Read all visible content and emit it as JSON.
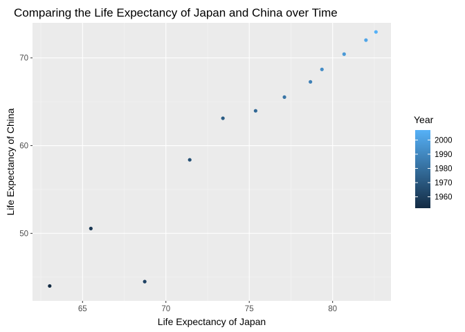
{
  "chart_data": {
    "type": "scatter",
    "title": "Comparing the Life Expectancy of Japan and China over Time",
    "xlabel": "Life Expectancy of Japan",
    "ylabel": "Life Expectancy of China",
    "xlim": [
      62.0,
      83.5
    ],
    "ylim": [
      42.3,
      74.0
    ],
    "x_ticks": [
      65,
      70,
      75,
      80
    ],
    "y_ticks": [
      50,
      60,
      70
    ],
    "grid": true,
    "legend": {
      "title": "Year",
      "position": "right",
      "ticks": [
        1960,
        1970,
        1980,
        1990,
        2000
      ],
      "range": [
        1952,
        2007
      ],
      "color_low": "#132B43",
      "color_high": "#56B1F7"
    },
    "points": [
      {
        "year": 1952,
        "x": 63.03,
        "y": 44.0
      },
      {
        "year": 1957,
        "x": 65.5,
        "y": 50.55
      },
      {
        "year": 1962,
        "x": 68.73,
        "y": 44.5
      },
      {
        "year": 1967,
        "x": 71.43,
        "y": 58.38
      },
      {
        "year": 1972,
        "x": 73.42,
        "y": 63.12
      },
      {
        "year": 1977,
        "x": 75.38,
        "y": 63.97
      },
      {
        "year": 1982,
        "x": 77.11,
        "y": 65.53
      },
      {
        "year": 1987,
        "x": 78.67,
        "y": 67.27
      },
      {
        "year": 1992,
        "x": 79.36,
        "y": 68.69
      },
      {
        "year": 1997,
        "x": 80.69,
        "y": 70.43
      },
      {
        "year": 2002,
        "x": 82.0,
        "y": 72.03
      },
      {
        "year": 2007,
        "x": 82.6,
        "y": 72.96
      }
    ]
  }
}
